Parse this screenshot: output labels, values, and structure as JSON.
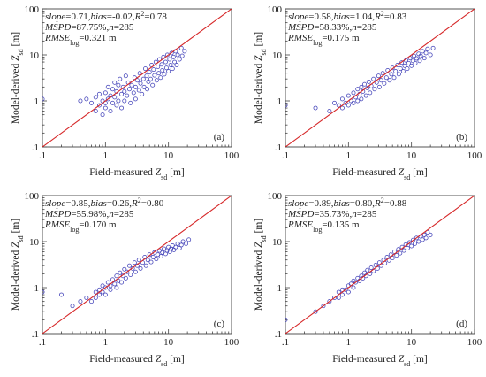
{
  "figure": {
    "point_color": "#4040b8",
    "line_color": "#d62728",
    "tick_labels": [
      ".1",
      "1",
      "10",
      "100"
    ]
  },
  "chart_data": [
    {
      "type": "scatter",
      "panel": "(a)",
      "xlabel": "Field-measured Z",
      "xlabel_sub": "sd",
      "ylabel": "Model-derived Z",
      "ylabel_sub": "sd",
      "unit": " [m]",
      "xlim": [
        0.1,
        100
      ],
      "ylim": [
        0.1,
        100
      ],
      "log_x": true,
      "log_y": true,
      "reference_line": "1:1",
      "stats": [
        [
          {
            "t": "slope",
            "i": true
          },
          {
            "t": "=0.71,",
            "i": false
          },
          {
            "t": "bias",
            "i": true
          },
          {
            "t": "=-0.02,",
            "i": false
          },
          {
            "t": "R",
            "i": true
          },
          {
            "t": "2",
            "sup": true
          },
          {
            "t": "=0.78",
            "i": false
          }
        ],
        [
          {
            "t": "MSPD",
            "i": true
          },
          {
            "t": "=87.75%,",
            "i": false
          },
          {
            "t": "n",
            "i": true
          },
          {
            "t": "=285",
            "i": false
          }
        ],
        [
          {
            "t": "RMSE",
            "i": true
          },
          {
            "t": "log",
            "sub": true
          },
          {
            "t": "=0.321 m",
            "i": false
          }
        ]
      ],
      "points": [
        [
          0.1,
          1.1
        ],
        [
          0.4,
          1.0
        ],
        [
          0.5,
          1.1
        ],
        [
          0.6,
          0.9
        ],
        [
          0.7,
          1.2
        ],
        [
          0.7,
          0.6
        ],
        [
          0.8,
          1.4
        ],
        [
          0.8,
          0.8
        ],
        [
          0.9,
          1.0
        ],
        [
          0.9,
          0.5
        ],
        [
          1.0,
          1.5
        ],
        [
          1.0,
          0.9
        ],
        [
          1.0,
          0.7
        ],
        [
          1.1,
          2.0
        ],
        [
          1.1,
          1.1
        ],
        [
          1.2,
          1.3
        ],
        [
          1.2,
          0.6
        ],
        [
          1.3,
          1.8
        ],
        [
          1.3,
          0.9
        ],
        [
          1.4,
          2.5
        ],
        [
          1.4,
          1.2
        ],
        [
          1.5,
          1.6
        ],
        [
          1.5,
          0.8
        ],
        [
          1.6,
          2.2
        ],
        [
          1.6,
          1.0
        ],
        [
          1.7,
          3.0
        ],
        [
          1.8,
          1.4
        ],
        [
          1.8,
          0.7
        ],
        [
          1.9,
          2.0
        ],
        [
          2.0,
          1.6
        ],
        [
          2.0,
          1.0
        ],
        [
          2.1,
          3.5
        ],
        [
          2.2,
          1.3
        ],
        [
          2.3,
          2.5
        ],
        [
          2.4,
          1.8
        ],
        [
          2.5,
          0.9
        ],
        [
          2.6,
          2.2
        ],
        [
          2.8,
          1.5
        ],
        [
          2.9,
          3.2
        ],
        [
          3.0,
          2.0
        ],
        [
          3.0,
          1.1
        ],
        [
          3.2,
          2.8
        ],
        [
          3.4,
          1.7
        ],
        [
          3.5,
          4.0
        ],
        [
          3.6,
          2.4
        ],
        [
          3.8,
          1.4
        ],
        [
          4.0,
          3.0
        ],
        [
          4.1,
          2.0
        ],
        [
          4.3,
          5.0
        ],
        [
          4.5,
          3.5
        ],
        [
          4.6,
          1.8
        ],
        [
          4.8,
          2.6
        ],
        [
          5.0,
          4.2
        ],
        [
          5.2,
          3.0
        ],
        [
          5.4,
          6.0
        ],
        [
          5.6,
          2.2
        ],
        [
          5.8,
          4.8
        ],
        [
          6.0,
          3.6
        ],
        [
          6.3,
          7.0
        ],
        [
          6.5,
          2.8
        ],
        [
          6.8,
          5.5
        ],
        [
          7.0,
          4.0
        ],
        [
          7.2,
          8.0
        ],
        [
          7.5,
          3.2
        ],
        [
          7.8,
          6.2
        ],
        [
          8.0,
          4.6
        ],
        [
          8.3,
          9.0
        ],
        [
          8.6,
          3.8
        ],
        [
          9.0,
          7.0
        ],
        [
          9.3,
          5.2
        ],
        [
          9.6,
          10.0
        ],
        [
          10.0,
          4.4
        ],
        [
          10.4,
          8.0
        ],
        [
          10.8,
          6.0
        ],
        [
          11.2,
          11.0
        ],
        [
          11.6,
          5.0
        ],
        [
          12.0,
          9.0
        ],
        [
          12.5,
          7.0
        ],
        [
          13.0,
          12.0
        ],
        [
          13.5,
          6.0
        ],
        [
          14.0,
          10.0
        ],
        [
          15.0,
          8.0
        ],
        [
          16.0,
          14.0
        ],
        [
          16.5,
          9.5
        ],
        [
          18.0,
          12.0
        ]
      ]
    },
    {
      "type": "scatter",
      "panel": "(b)",
      "xlabel": "Field-measured Z",
      "xlabel_sub": "sd",
      "ylabel": "Model-derived Z",
      "ylabel_sub": "sd",
      "unit": " [m]",
      "xlim": [
        0.1,
        100
      ],
      "ylim": [
        0.1,
        100
      ],
      "log_x": true,
      "log_y": true,
      "reference_line": "1:1",
      "stats": [
        [
          {
            "t": "slope",
            "i": true
          },
          {
            "t": "=0.58,",
            "i": false
          },
          {
            "t": "bias",
            "i": true
          },
          {
            "t": "=1.04,",
            "i": false
          },
          {
            "t": "R",
            "i": true
          },
          {
            "t": "2",
            "sup": true
          },
          {
            "t": "=0.83",
            "i": false
          }
        ],
        [
          {
            "t": "MSPD",
            "i": true
          },
          {
            "t": "=58.33%,",
            "i": false
          },
          {
            "t": "n",
            "i": true
          },
          {
            "t": "=285",
            "i": false
          }
        ],
        [
          {
            "t": "RMSE",
            "i": true
          },
          {
            "t": "log",
            "sub": true
          },
          {
            "t": "=0.175 m",
            "i": false
          }
        ]
      ],
      "points": [
        [
          0.1,
          0.8
        ],
        [
          0.3,
          0.7
        ],
        [
          0.5,
          0.6
        ],
        [
          0.6,
          0.9
        ],
        [
          0.7,
          0.8
        ],
        [
          0.8,
          1.1
        ],
        [
          0.8,
          0.7
        ],
        [
          0.9,
          0.9
        ],
        [
          1.0,
          1.3
        ],
        [
          1.0,
          0.8
        ],
        [
          1.1,
          1.0
        ],
        [
          1.2,
          1.5
        ],
        [
          1.2,
          0.9
        ],
        [
          1.3,
          1.2
        ],
        [
          1.4,
          1.8
        ],
        [
          1.4,
          1.0
        ],
        [
          1.5,
          1.4
        ],
        [
          1.6,
          2.0
        ],
        [
          1.6,
          1.1
        ],
        [
          1.7,
          1.6
        ],
        [
          1.8,
          2.3
        ],
        [
          1.9,
          1.3
        ],
        [
          2.0,
          1.9
        ],
        [
          2.1,
          2.6
        ],
        [
          2.2,
          1.5
        ],
        [
          2.3,
          2.1
        ],
        [
          2.5,
          3.0
        ],
        [
          2.6,
          1.8
        ],
        [
          2.8,
          2.5
        ],
        [
          3.0,
          3.5
        ],
        [
          3.1,
          2.0
        ],
        [
          3.3,
          2.8
        ],
        [
          3.5,
          4.0
        ],
        [
          3.7,
          2.4
        ],
        [
          4.0,
          3.2
        ],
        [
          4.2,
          4.6
        ],
        [
          4.5,
          2.8
        ],
        [
          4.8,
          3.8
        ],
        [
          5.0,
          5.2
        ],
        [
          5.3,
          3.2
        ],
        [
          5.6,
          4.4
        ],
        [
          6.0,
          6.0
        ],
        [
          6.3,
          3.8
        ],
        [
          6.7,
          5.0
        ],
        [
          7.0,
          6.8
        ],
        [
          7.4,
          4.4
        ],
        [
          7.8,
          5.8
        ],
        [
          8.2,
          7.6
        ],
        [
          8.6,
          5.0
        ],
        [
          9.0,
          6.6
        ],
        [
          9.5,
          8.5
        ],
        [
          10.0,
          5.8
        ],
        [
          10.5,
          7.4
        ],
        [
          11.0,
          9.5
        ],
        [
          11.5,
          6.6
        ],
        [
          12.0,
          8.4
        ],
        [
          13.0,
          10.5
        ],
        [
          13.5,
          7.4
        ],
        [
          14.0,
          9.5
        ],
        [
          15.0,
          12.0
        ],
        [
          16.0,
          8.5
        ],
        [
          17.0,
          11.0
        ],
        [
          18.0,
          13.5
        ],
        [
          20.0,
          10.0
        ],
        [
          22.0,
          14.0
        ]
      ]
    },
    {
      "type": "scatter",
      "panel": "(c)",
      "xlabel": "Field-measured Z",
      "xlabel_sub": "sd",
      "ylabel": "Model-derived Z",
      "ylabel_sub": "sd",
      "unit": " [m]",
      "xlim": [
        0.1,
        100
      ],
      "ylim": [
        0.1,
        100
      ],
      "log_x": true,
      "log_y": true,
      "reference_line": "1:1",
      "stats": [
        [
          {
            "t": "slope",
            "i": true
          },
          {
            "t": "=0.85,",
            "i": false
          },
          {
            "t": "bias",
            "i": true
          },
          {
            "t": "=0.26,",
            "i": false
          },
          {
            "t": "R",
            "i": true
          },
          {
            "t": "2",
            "sup": true
          },
          {
            "t": "=0.80",
            "i": false
          }
        ],
        [
          {
            "t": "MSPD",
            "i": true
          },
          {
            "t": "=55.98%,",
            "i": false
          },
          {
            "t": "n",
            "i": true
          },
          {
            "t": "=285",
            "i": false
          }
        ],
        [
          {
            "t": "RMSE",
            "i": true
          },
          {
            "t": "log",
            "sub": true
          },
          {
            "t": "=0.170 m",
            "i": false
          }
        ]
      ],
      "points": [
        [
          0.1,
          0.8
        ],
        [
          0.2,
          0.7
        ],
        [
          0.3,
          0.4
        ],
        [
          0.4,
          0.5
        ],
        [
          0.5,
          0.6
        ],
        [
          0.6,
          0.5
        ],
        [
          0.7,
          0.8
        ],
        [
          0.7,
          0.6
        ],
        [
          0.8,
          0.9
        ],
        [
          0.8,
          0.7
        ],
        [
          0.9,
          1.1
        ],
        [
          0.9,
          0.8
        ],
        [
          1.0,
          1.0
        ],
        [
          1.0,
          0.7
        ],
        [
          1.1,
          1.3
        ],
        [
          1.2,
          1.1
        ],
        [
          1.2,
          0.9
        ],
        [
          1.3,
          1.5
        ],
        [
          1.4,
          1.2
        ],
        [
          1.5,
          1.8
        ],
        [
          1.5,
          1.0
        ],
        [
          1.6,
          1.4
        ],
        [
          1.7,
          2.1
        ],
        [
          1.8,
          1.3
        ],
        [
          1.9,
          1.8
        ],
        [
          2.0,
          2.5
        ],
        [
          2.1,
          1.6
        ],
        [
          2.2,
          2.2
        ],
        [
          2.4,
          3.0
        ],
        [
          2.5,
          1.9
        ],
        [
          2.7,
          2.6
        ],
        [
          2.9,
          3.5
        ],
        [
          3.0,
          2.2
        ],
        [
          3.2,
          3.0
        ],
        [
          3.4,
          4.0
        ],
        [
          3.6,
          2.6
        ],
        [
          3.9,
          3.5
        ],
        [
          4.2,
          4.6
        ],
        [
          4.4,
          3.0
        ],
        [
          4.7,
          4.0
        ],
        [
          5.0,
          5.2
        ],
        [
          5.3,
          3.6
        ],
        [
          5.7,
          4.6
        ],
        [
          6.0,
          5.8
        ],
        [
          6.4,
          4.2
        ],
        [
          6.8,
          5.2
        ],
        [
          7.2,
          6.4
        ],
        [
          7.6,
          4.8
        ],
        [
          8.0,
          5.8
        ],
        [
          8.5,
          7.0
        ],
        [
          9.0,
          5.4
        ],
        [
          9.5,
          6.4
        ],
        [
          10.0,
          7.6
        ],
        [
          10.5,
          6.0
        ],
        [
          11.0,
          7.0
        ],
        [
          11.6,
          8.2
        ],
        [
          12.2,
          6.6
        ],
        [
          13.0,
          7.6
        ],
        [
          14.0,
          9.0
        ],
        [
          15.0,
          7.2
        ],
        [
          16.0,
          8.4
        ],
        [
          17.0,
          10.0
        ],
        [
          19.0,
          9.0
        ],
        [
          21.0,
          11.0
        ]
      ]
    },
    {
      "type": "scatter",
      "panel": "(d)",
      "xlabel": "Field-measured Z",
      "xlabel_sub": "sd",
      "ylabel": "Model-derived Z",
      "ylabel_sub": "sd",
      "unit": " [m]",
      "xlim": [
        0.1,
        100
      ],
      "ylim": [
        0.1,
        100
      ],
      "log_x": true,
      "log_y": true,
      "reference_line": "1:1",
      "stats": [
        [
          {
            "t": "slope",
            "i": true
          },
          {
            "t": "=0.89,",
            "i": false
          },
          {
            "t": "bias",
            "i": true
          },
          {
            "t": "=0.80,",
            "i": false
          },
          {
            "t": "R",
            "i": true
          },
          {
            "t": "2",
            "sup": true
          },
          {
            "t": "=0.88",
            "i": false
          }
        ],
        [
          {
            "t": "MSPD",
            "i": true
          },
          {
            "t": "=35.73%,",
            "i": false
          },
          {
            "t": "n",
            "i": true
          },
          {
            "t": "=285",
            "i": false
          }
        ],
        [
          {
            "t": "RMSE",
            "i": true
          },
          {
            "t": "log",
            "sub": true
          },
          {
            "t": "=0.135 m",
            "i": false
          }
        ]
      ],
      "points": [
        [
          0.1,
          0.2
        ],
        [
          0.3,
          0.3
        ],
        [
          0.4,
          0.4
        ],
        [
          0.5,
          0.5
        ],
        [
          0.6,
          0.6
        ],
        [
          0.7,
          0.6
        ],
        [
          0.7,
          0.8
        ],
        [
          0.8,
          0.7
        ],
        [
          0.8,
          0.9
        ],
        [
          0.9,
          0.9
        ],
        [
          1.0,
          1.1
        ],
        [
          1.0,
          0.8
        ],
        [
          1.1,
          1.2
        ],
        [
          1.2,
          1.0
        ],
        [
          1.2,
          1.4
        ],
        [
          1.3,
          1.3
        ],
        [
          1.4,
          1.6
        ],
        [
          1.5,
          1.4
        ],
        [
          1.6,
          1.8
        ],
        [
          1.7,
          1.6
        ],
        [
          1.8,
          2.1
        ],
        [
          1.9,
          1.8
        ],
        [
          2.0,
          2.4
        ],
        [
          2.2,
          2.0
        ],
        [
          2.3,
          2.7
        ],
        [
          2.5,
          2.3
        ],
        [
          2.7,
          3.1
        ],
        [
          2.9,
          2.6
        ],
        [
          3.1,
          3.5
        ],
        [
          3.3,
          3.0
        ],
        [
          3.6,
          4.0
        ],
        [
          3.8,
          3.4
        ],
        [
          4.1,
          4.6
        ],
        [
          4.4,
          3.9
        ],
        [
          4.7,
          5.2
        ],
        [
          5.0,
          4.4
        ],
        [
          5.4,
          6.0
        ],
        [
          5.8,
          5.0
        ],
        [
          6.2,
          6.8
        ],
        [
          6.6,
          5.6
        ],
        [
          7.1,
          7.6
        ],
        [
          7.6,
          6.4
        ],
        [
          8.1,
          8.6
        ],
        [
          8.7,
          7.2
        ],
        [
          9.3,
          9.6
        ],
        [
          10.0,
          8.0
        ],
        [
          10.6,
          10.8
        ],
        [
          11.3,
          9.0
        ],
        [
          12.0,
          12.0
        ],
        [
          13.0,
          10.0
        ],
        [
          14.0,
          13.0
        ],
        [
          15.0,
          11.0
        ],
        [
          16.0,
          14.0
        ],
        [
          17.0,
          12.0
        ],
        [
          18.0,
          16.0
        ],
        [
          20.0,
          14.0
        ]
      ]
    }
  ]
}
